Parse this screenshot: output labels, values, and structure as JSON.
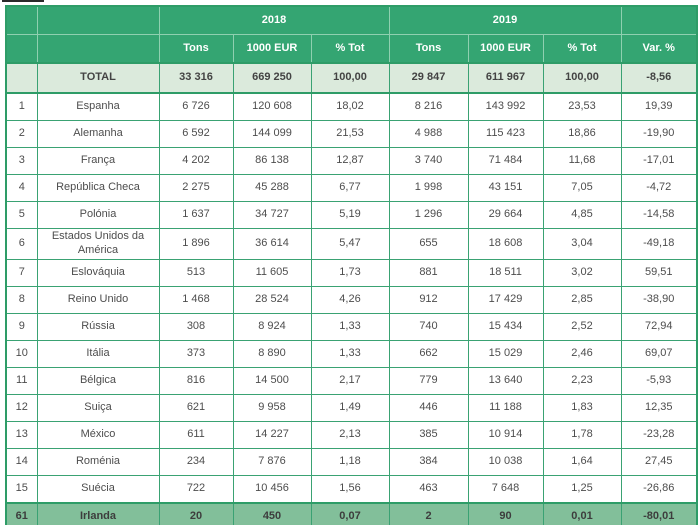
{
  "chart_data": {
    "type": "table",
    "header": {
      "year_groups": [
        "2018",
        "2019"
      ],
      "columns": [
        "Tons",
        "1000 EUR",
        "% Tot",
        "Tons",
        "1000 EUR",
        "% Tot",
        "Var. %"
      ]
    },
    "total_row": {
      "rank": "",
      "name": "TOTAL",
      "values": [
        "33 316",
        "669 250",
        "100,00",
        "29 847",
        "611 967",
        "100,00",
        "-8,56"
      ]
    },
    "rows": [
      {
        "rank": "1",
        "name": "Espanha",
        "values": [
          "6 726",
          "120 608",
          "18,02",
          "8 216",
          "143 992",
          "23,53",
          "19,39"
        ]
      },
      {
        "rank": "2",
        "name": "Alemanha",
        "values": [
          "6 592",
          "144 099",
          "21,53",
          "4 988",
          "115 423",
          "18,86",
          "-19,90"
        ]
      },
      {
        "rank": "3",
        "name": "França",
        "values": [
          "4 202",
          "86 138",
          "12,87",
          "3 740",
          "71 484",
          "11,68",
          "-17,01"
        ]
      },
      {
        "rank": "4",
        "name": "República Checa",
        "values": [
          "2 275",
          "45 288",
          "6,77",
          "1 998",
          "43 151",
          "7,05",
          "-4,72"
        ]
      },
      {
        "rank": "5",
        "name": "Polónia",
        "values": [
          "1 637",
          "34 727",
          "5,19",
          "1 296",
          "29 664",
          "4,85",
          "-14,58"
        ]
      },
      {
        "rank": "6",
        "name": "Estados Unidos da América",
        "values": [
          "1 896",
          "36 614",
          "5,47",
          "655",
          "18 608",
          "3,04",
          "-49,18"
        ]
      },
      {
        "rank": "7",
        "name": "Eslováquia",
        "values": [
          "513",
          "11 605",
          "1,73",
          "881",
          "18 511",
          "3,02",
          "59,51"
        ]
      },
      {
        "rank": "8",
        "name": "Reino Unido",
        "values": [
          "1 468",
          "28 524",
          "4,26",
          "912",
          "17 429",
          "2,85",
          "-38,90"
        ]
      },
      {
        "rank": "9",
        "name": "Rússia",
        "values": [
          "308",
          "8 924",
          "1,33",
          "740",
          "15 434",
          "2,52",
          "72,94"
        ]
      },
      {
        "rank": "10",
        "name": "Itália",
        "values": [
          "373",
          "8 890",
          "1,33",
          "662",
          "15 029",
          "2,46",
          "69,07"
        ]
      },
      {
        "rank": "11",
        "name": "Bélgica",
        "values": [
          "816",
          "14 500",
          "2,17",
          "779",
          "13 640",
          "2,23",
          "-5,93"
        ]
      },
      {
        "rank": "12",
        "name": "Suiça",
        "values": [
          "621",
          "9 958",
          "1,49",
          "446",
          "11 188",
          "1,83",
          "12,35"
        ]
      },
      {
        "rank": "13",
        "name": "México",
        "values": [
          "611",
          "14 227",
          "2,13",
          "385",
          "10 914",
          "1,78",
          "-23,28"
        ]
      },
      {
        "rank": "14",
        "name": "Roménia",
        "values": [
          "234",
          "7 876",
          "1,18",
          "384",
          "10 038",
          "1,64",
          "27,45"
        ]
      },
      {
        "rank": "15",
        "name": "Suécia",
        "values": [
          "722",
          "10 456",
          "1,56",
          "463",
          "7 648",
          "1,25",
          "-26,86"
        ]
      },
      {
        "rank": "61",
        "name": "Irlanda",
        "highlight": true,
        "values": [
          "20",
          "450",
          "0,07",
          "2",
          "90",
          "0,01",
          "-80,01"
        ]
      }
    ]
  },
  "colors": {
    "header_green": "#34a572",
    "outer_border_green": "#2e9c67",
    "grid_green": "#3aa273",
    "total_row_bg": "#dbeadc",
    "highlight_row_bg": "#82bf9a",
    "body_text": "#4d4d4d"
  }
}
